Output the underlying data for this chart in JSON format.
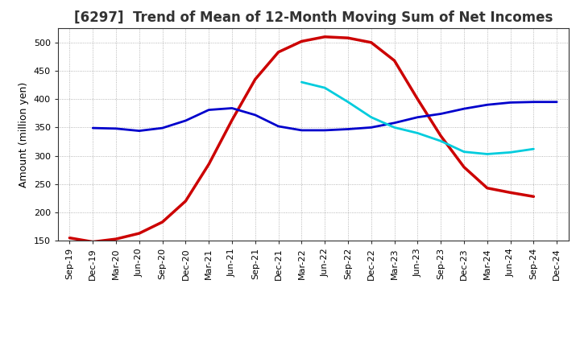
{
  "title": "[6297]  Trend of Mean of 12-Month Moving Sum of Net Incomes",
  "ylabel": "Amount (million yen)",
  "ylim": [
    150,
    525
  ],
  "yticks": [
    150,
    200,
    250,
    300,
    350,
    400,
    450,
    500
  ],
  "background_color": "#ffffff",
  "grid_color": "#999999",
  "x_labels": [
    "Sep-19",
    "Dec-19",
    "Mar-20",
    "Jun-20",
    "Sep-20",
    "Dec-20",
    "Mar-21",
    "Jun-21",
    "Sep-21",
    "Dec-21",
    "Mar-22",
    "Jun-22",
    "Sep-22",
    "Dec-22",
    "Mar-23",
    "Jun-23",
    "Sep-23",
    "Dec-23",
    "Mar-24",
    "Jun-24",
    "Sep-24",
    "Dec-24"
  ],
  "series": {
    "3 Years": {
      "color": "#cc0000",
      "linewidth": 2.5,
      "values": [
        155,
        148,
        153,
        163,
        183,
        220,
        285,
        363,
        435,
        483,
        502,
        510,
        508,
        500,
        468,
        400,
        335,
        280,
        243,
        235,
        228,
        null
      ]
    },
    "5 Years": {
      "color": "#0000cc",
      "linewidth": 2.0,
      "values": [
        null,
        349,
        348,
        344,
        349,
        362,
        381,
        384,
        372,
        352,
        345,
        345,
        347,
        350,
        358,
        368,
        374,
        383,
        390,
        394,
        395,
        395
      ]
    },
    "7 Years": {
      "color": "#00ccdd",
      "linewidth": 2.0,
      "values": [
        null,
        null,
        null,
        null,
        null,
        null,
        null,
        null,
        null,
        null,
        430,
        420,
        395,
        368,
        350,
        340,
        326,
        307,
        303,
        306,
        312,
        null
      ]
    },
    "10 Years": {
      "color": "#008800",
      "linewidth": 2.0,
      "values": [
        null,
        null,
        null,
        null,
        null,
        null,
        null,
        null,
        null,
        null,
        null,
        null,
        null,
        null,
        null,
        null,
        null,
        null,
        null,
        null,
        null,
        null
      ]
    }
  },
  "legend_ncol": 4,
  "legend_fontsize": 9,
  "title_fontsize": 12,
  "ylabel_fontsize": 9,
  "tick_fontsize": 8
}
